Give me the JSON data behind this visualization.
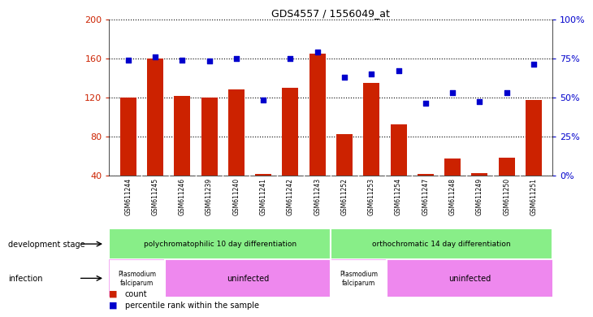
{
  "title": "GDS4557 / 1556049_at",
  "samples": [
    "GSM611244",
    "GSM611245",
    "GSM611246",
    "GSM611239",
    "GSM611240",
    "GSM611241",
    "GSM611242",
    "GSM611243",
    "GSM611252",
    "GSM611253",
    "GSM611254",
    "GSM611247",
    "GSM611248",
    "GSM611249",
    "GSM611250",
    "GSM611251"
  ],
  "counts": [
    120,
    160,
    121,
    120,
    128,
    41,
    130,
    165,
    82,
    135,
    92,
    41,
    57,
    42,
    58,
    117
  ],
  "percentiles": [
    74,
    76,
    74,
    73,
    75,
    48,
    75,
    79,
    63,
    65,
    67,
    46,
    53,
    47,
    53,
    71
  ],
  "ylim_left": [
    40,
    200
  ],
  "ylim_right": [
    0,
    100
  ],
  "yticks_left": [
    40,
    80,
    120,
    160,
    200
  ],
  "yticks_right": [
    0,
    25,
    50,
    75,
    100
  ],
  "bar_color": "#cc2200",
  "dot_color": "#0000cc",
  "bg_color": "#d8d8d8",
  "green_color": "#88ee88",
  "magenta_color": "#ee88ee",
  "dev_stage_label": "development stage",
  "infection_label": "infection",
  "legend_count": "count",
  "legend_pct": "percentile rank within the sample",
  "group1_label": "polychromatophilic 10 day differentiation",
  "group2_label": "orthochromatic 14 day differentiation",
  "inf1_label": "Plasmodium\nfalciparum",
  "inf2_label": "uninfected",
  "inf3_label": "Plasmodium\nfalciparum",
  "inf4_label": "uninfected"
}
